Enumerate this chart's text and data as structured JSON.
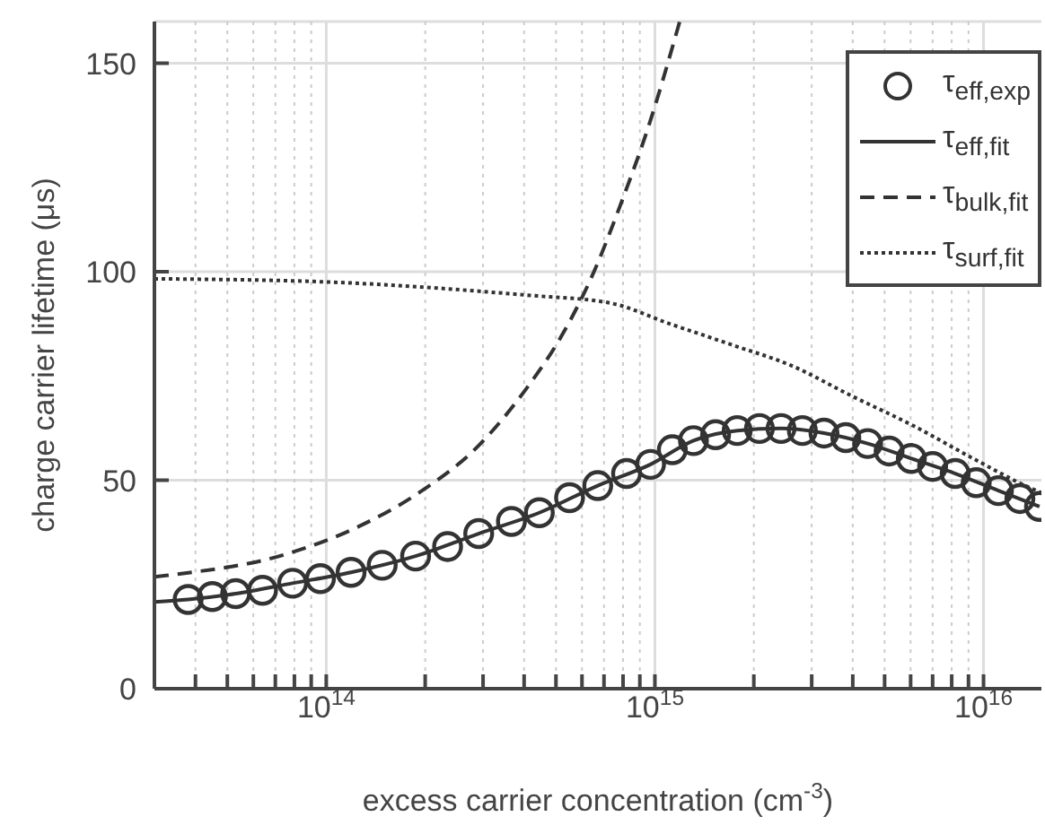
{
  "chart_data": {
    "type": "line",
    "xlabel": "excess carrier concentration (cm$^{-3}$)",
    "ylabel": "charge carrier lifetime (μs)",
    "log": "x",
    "xlim": [
      30000000000000.0,
      1.5e+16
    ],
    "ylim": [
      0,
      160
    ],
    "yticks": [
      0,
      50,
      100,
      150
    ],
    "xticks": [
      {
        "value": 40000000000000.0,
        "label": null
      },
      {
        "value": 50000000000000.0,
        "label": null
      },
      {
        "value": 60000000000000.0,
        "label": null
      },
      {
        "value": 70000000000000.0,
        "label": null
      },
      {
        "value": 80000000000000.0,
        "label": null
      },
      {
        "value": 90000000000000.0,
        "label": null
      },
      {
        "value": 100000000000000.0,
        "label": "10$^{14}$"
      },
      {
        "value": 200000000000000.0,
        "label": null
      },
      {
        "value": 300000000000000.0,
        "label": null
      },
      {
        "value": 400000000000000.0,
        "label": null
      },
      {
        "value": 500000000000000.0,
        "label": null
      },
      {
        "value": 600000000000000.0,
        "label": null
      },
      {
        "value": 700000000000000.0,
        "label": null
      },
      {
        "value": 800000000000000.0,
        "label": null
      },
      {
        "value": 900000000000000.0,
        "label": null
      },
      {
        "value": 1000000000000000.0,
        "label": "10$^{15}$"
      },
      {
        "value": 2000000000000000.0,
        "label": null
      },
      {
        "value": 3000000000000000.0,
        "label": null
      },
      {
        "value": 4000000000000000.0,
        "label": null
      },
      {
        "value": 5000000000000000.0,
        "label": null
      },
      {
        "value": 6000000000000000.0,
        "label": null
      },
      {
        "value": 7000000000000000.0,
        "label": null
      },
      {
        "value": 8000000000000000.0,
        "label": null
      },
      {
        "value": 9000000000000000.0,
        "label": null
      },
      {
        "value": 1e+16,
        "label": "10$^{16}$"
      }
    ],
    "grid": true,
    "legend": "top right",
    "series": [
      {
        "name": "τ$_{eff,exp}$",
        "type": "scatter",
        "marker": "circle",
        "color": "#333333",
        "x": [
          38000000000000.0,
          45000000000000.0,
          53000000000000.0,
          64000000000000.0,
          79000000000000.0,
          96000000000000.0,
          119000000000000.0,
          148000000000000.0,
          187000000000000.0,
          234000000000000.0,
          291000000000000.0,
          366000000000000.0,
          445000000000000.0,
          550000000000000.0,
          670000000000000.0,
          820000000000000.0,
          970000000000000.0,
          1130000000000000.0,
          1310000000000000.0,
          1530000000000000.0,
          1780000000000000.0,
          2080000000000000.0,
          2420000000000000.0,
          2810000000000000.0,
          3270000000000000.0,
          3810000000000000.0,
          4440000000000000.0,
          5160000000000000.0,
          6030000000000000.0,
          7000000000000000.0,
          8200000000000000.0,
          9500000000000000.0,
          1.11e+16,
          1.29e+16,
          1.48e+16
        ],
        "values": [
          21.4,
          22.1,
          22.8,
          23.6,
          25.3,
          26.4,
          27.9,
          29.6,
          31.8,
          34.1,
          37.2,
          40.1,
          42.2,
          45.8,
          48.7,
          51.6,
          53.8,
          57.3,
          59.5,
          60.9,
          61.9,
          62.4,
          62.4,
          61.9,
          61.3,
          60.2,
          58.8,
          57.0,
          55.2,
          53.3,
          51.6,
          49.4,
          47.5,
          45.6,
          43.7
        ]
      },
      {
        "name": "τ$_{eff,fit}$",
        "type": "line",
        "line_style": "solid",
        "color": "#333333",
        "x": [
          30000000000000.0,
          38000000000000.0,
          53000000000000.0,
          79000000000000.0,
          119000000000000.0,
          187000000000000.0,
          291000000000000.0,
          445000000000000.0,
          670000000000000.0,
          970000000000000.0,
          1310000000000000.0,
          1780000000000000.0,
          2420000000000000.0,
          3270000000000000.0,
          4440000000000000.0,
          6030000000000000.0,
          8200000000000000.0,
          1.11e+16,
          1.48e+16
        ],
        "values": [
          20.8,
          21.4,
          22.8,
          25.3,
          27.9,
          31.8,
          37.2,
          42.2,
          48.7,
          53.8,
          59.5,
          61.9,
          62.4,
          61.3,
          58.8,
          55.2,
          51.6,
          47.5,
          43.7
        ]
      },
      {
        "name": "τ$_{bulk,fit}$",
        "type": "line",
        "line_style": "dashed",
        "color": "#333333",
        "x": [
          30000000000000.0,
          33000000000000.0,
          75000000000000.0,
          124000000000000.0,
          188000000000000.0,
          290000000000000.0,
          404000000000000.0,
          520000000000000.0,
          645000000000000.0,
          800000000000000.0,
          945000000000000.0,
          1190000000000000.0
        ],
        "values": [
          26.8,
          27.2,
          32.2,
          38.7,
          46.6,
          58.2,
          71.7,
          84.6,
          99.1,
          117.7,
          133.6,
          160
        ]
      },
      {
        "name": "τ$_{surf,fit}$",
        "type": "line",
        "line_style": "dotted",
        "color": "#333333",
        "x": [
          30000000000000.0,
          96000000000000.0,
          404000000000000.0,
          730000000000000.0,
          1110000000000000.0,
          1710000000000000.0,
          2600000000000000.0,
          3950000000000000.0,
          6100000000000000.0,
          9300000000000000.0,
          1.4e+16,
          1.5e+16
        ],
        "values": [
          98.3,
          97.6,
          94.4,
          92.5,
          87.5,
          82.5,
          77.5,
          70.3,
          63.1,
          55.2,
          48,
          47
        ]
      }
    ]
  }
}
